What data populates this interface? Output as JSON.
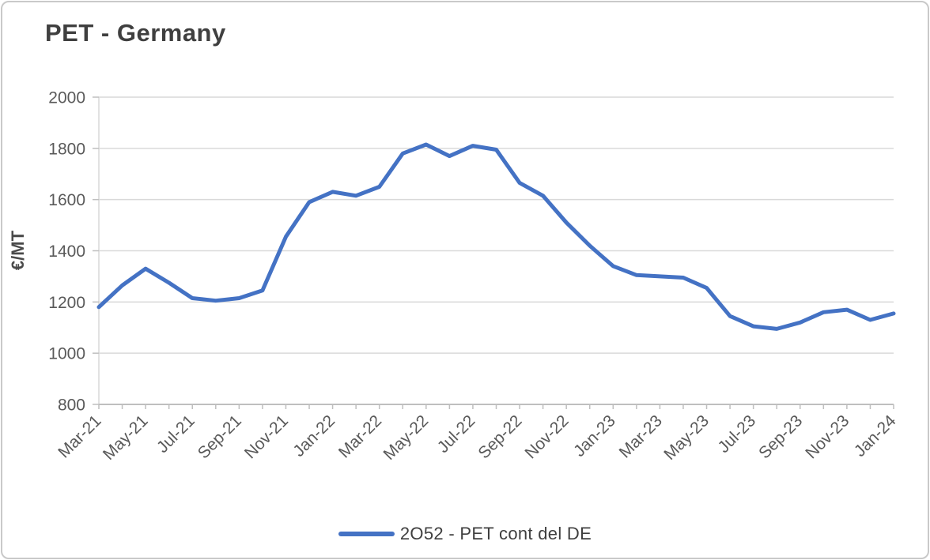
{
  "chart": {
    "title": "PET - Germany",
    "legend": {
      "label": "2O52 - PET cont del DE"
    }
  },
  "chart_data": {
    "type": "line",
    "title": "PET - Germany",
    "xlabel": "",
    "ylabel": "€/MT",
    "x": [
      "Mar-21",
      "Apr-21",
      "May-21",
      "Jun-21",
      "Jul-21",
      "Aug-21",
      "Sep-21",
      "Oct-21",
      "Nov-21",
      "Dec-21",
      "Jan-22",
      "Feb-22",
      "Mar-22",
      "Apr-22",
      "May-22",
      "Jun-22",
      "Jul-22",
      "Aug-22",
      "Sep-22",
      "Oct-22",
      "Nov-22",
      "Dec-22",
      "Jan-23",
      "Feb-23",
      "Mar-23",
      "Apr-23",
      "May-23",
      "Jun-23",
      "Jul-23",
      "Aug-23",
      "Sep-23",
      "Oct-23",
      "Nov-23",
      "Dec-23",
      "Jan-24"
    ],
    "series": [
      {
        "name": "2O52 - PET cont del DE",
        "values": [
          1180,
          1265,
          1330,
          1275,
          1215,
          1205,
          1215,
          1245,
          1455,
          1590,
          1630,
          1615,
          1650,
          1780,
          1815,
          1770,
          1810,
          1795,
          1665,
          1615,
          1510,
          1420,
          1340,
          1305,
          1300,
          1295,
          1255,
          1145,
          1105,
          1095,
          1120,
          1160,
          1170,
          1130,
          1155
        ]
      }
    ],
    "ylim": [
      800,
      2000
    ],
    "ytick_step": 200,
    "yticks": [
      800,
      1000,
      1200,
      1400,
      1600,
      1800,
      2000
    ],
    "x_label_every": 2,
    "grid": "horizontal",
    "legend_position": "bottom-center",
    "colors": {
      "line": "#4472C4",
      "grid": "#d9d9d9",
      "axis": "#bfbfbf",
      "tick_text": "#595959",
      "title_text": "#3f3f3f"
    }
  }
}
